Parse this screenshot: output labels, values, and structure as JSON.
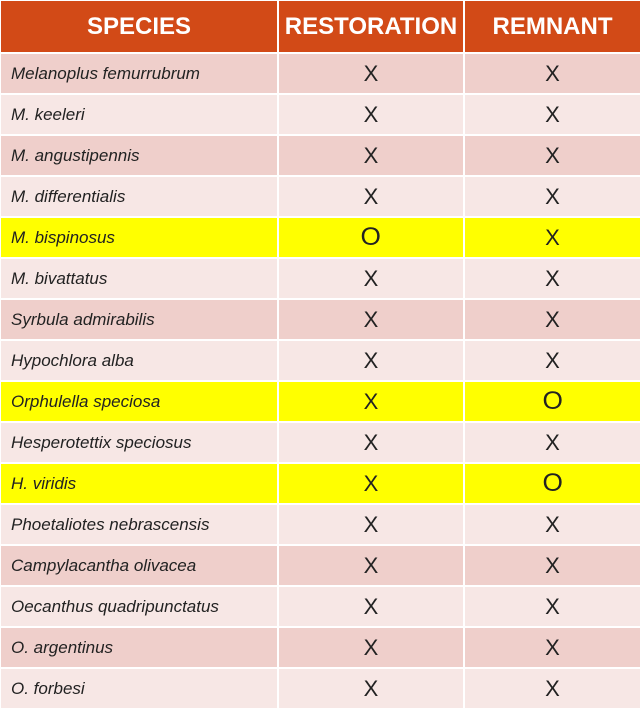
{
  "table": {
    "headers": [
      "SPECIES",
      "RESTORATION",
      "REMNANT"
    ],
    "colors": {
      "header": "#D24A17",
      "row_dark": "#EFCFCB",
      "row_light": "#F7E7E5",
      "highlight": "#FFFF00"
    },
    "rows": [
      {
        "species": "Melanoplus femurrubrum",
        "restoration": "X",
        "remnant": "X",
        "highlight": false
      },
      {
        "species": "M. keeleri",
        "restoration": "X",
        "remnant": "X",
        "highlight": false
      },
      {
        "species": "M. angustipennis",
        "restoration": "X",
        "remnant": "X",
        "highlight": false
      },
      {
        "species": "M. differentialis",
        "restoration": "X",
        "remnant": "X",
        "highlight": false
      },
      {
        "species": "M. bispinosus",
        "restoration": "O",
        "remnant": "X",
        "highlight": true
      },
      {
        "species": "M. bivattatus",
        "restoration": "X",
        "remnant": "X",
        "highlight": false
      },
      {
        "species": "Syrbula admirabilis",
        "restoration": "X",
        "remnant": "X",
        "highlight": false
      },
      {
        "species": "Hypochlora alba",
        "restoration": "X",
        "remnant": "X",
        "highlight": false
      },
      {
        "species": "Orphulella speciosa",
        "restoration": "X",
        "remnant": "O",
        "highlight": true
      },
      {
        "species": "Hesperotettix speciosus",
        "restoration": "X",
        "remnant": "X",
        "highlight": false
      },
      {
        "species": "H. viridis",
        "restoration": "X",
        "remnant": "O",
        "highlight": true
      },
      {
        "species": "Phoetaliotes nebrascensis",
        "restoration": "X",
        "remnant": "X",
        "highlight": false
      },
      {
        "species": "Campylacantha olivacea",
        "restoration": "X",
        "remnant": "X",
        "highlight": false
      },
      {
        "species": "Oecanthus quadripunctatus",
        "restoration": "X",
        "remnant": "X",
        "highlight": false
      },
      {
        "species": "O. argentinus",
        "restoration": "X",
        "remnant": "X",
        "highlight": false
      },
      {
        "species": "O. forbesi",
        "restoration": "X",
        "remnant": "X",
        "highlight": false
      }
    ]
  }
}
